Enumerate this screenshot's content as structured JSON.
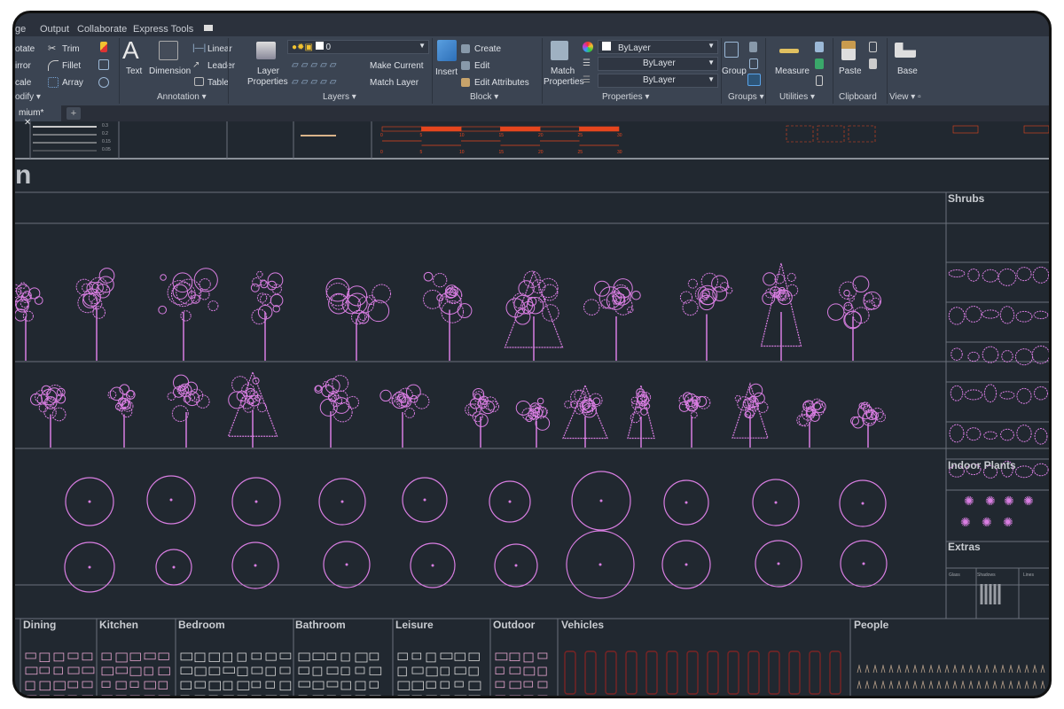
{
  "ribbon_tabs": [
    "ge",
    "Output",
    "Collaborate",
    "Express Tools"
  ],
  "modify": {
    "rotate": "otate",
    "mirror": "irror",
    "scale": "cale",
    "trim": "Trim",
    "fillet": "Fillet",
    "array": "Array",
    "panel": "odify"
  },
  "annotation": {
    "text": "Text",
    "dimension": "Dimension",
    "linear": "Linear",
    "leader": "Leader",
    "table": "Table",
    "panel": "Annotation"
  },
  "layers": {
    "layer_properties_1": "Layer",
    "layer_properties_2": "Properties",
    "current_layer": "0",
    "make_current": "Make Current",
    "match_layer": "Match Layer",
    "panel": "Layers"
  },
  "block": {
    "insert": "Insert",
    "create": "Create",
    "edit": "Edit",
    "edit_attributes": "Edit Attributes",
    "panel": "Block"
  },
  "properties": {
    "match_1": "Match",
    "match_2": "Properties",
    "color": "ByLayer",
    "linetype": "ByLayer",
    "lineweight": "ByLayer",
    "panel": "Properties"
  },
  "groups": {
    "group": "Group",
    "panel": "Groups"
  },
  "utilities": {
    "measure": "Measure",
    "panel": "Utilities"
  },
  "clipboard": {
    "paste": "Paste",
    "panel": "Clipboard"
  },
  "view": {
    "base": "Base",
    "panel": "View"
  },
  "doc_tab": {
    "label": "mium*",
    "close": "✕",
    "new": "+"
  },
  "drawing": {
    "title_fragment": "n",
    "lineweights": [
      "0.3",
      "0.2",
      "0.15",
      "0.05"
    ],
    "scale_ticks": [
      "0",
      "5",
      "10",
      "15",
      "20",
      "25",
      "30"
    ],
    "sections": {
      "shrubs": "Shrubs",
      "indoor_plants": "Indoor Plants",
      "extras": "Extras"
    },
    "extras_items": [
      "Glass",
      "Shadows",
      "Lines"
    ],
    "categories": [
      "Dining",
      "Kitchen",
      "Bedroom",
      "Bathroom",
      "Leisure",
      "Outdoor",
      "Vehicles",
      "People"
    ]
  },
  "colors": {
    "plant": "#d97ee2",
    "scale_bar": "#e5461e",
    "vehicles": "#7a2424",
    "background": "#212830"
  }
}
